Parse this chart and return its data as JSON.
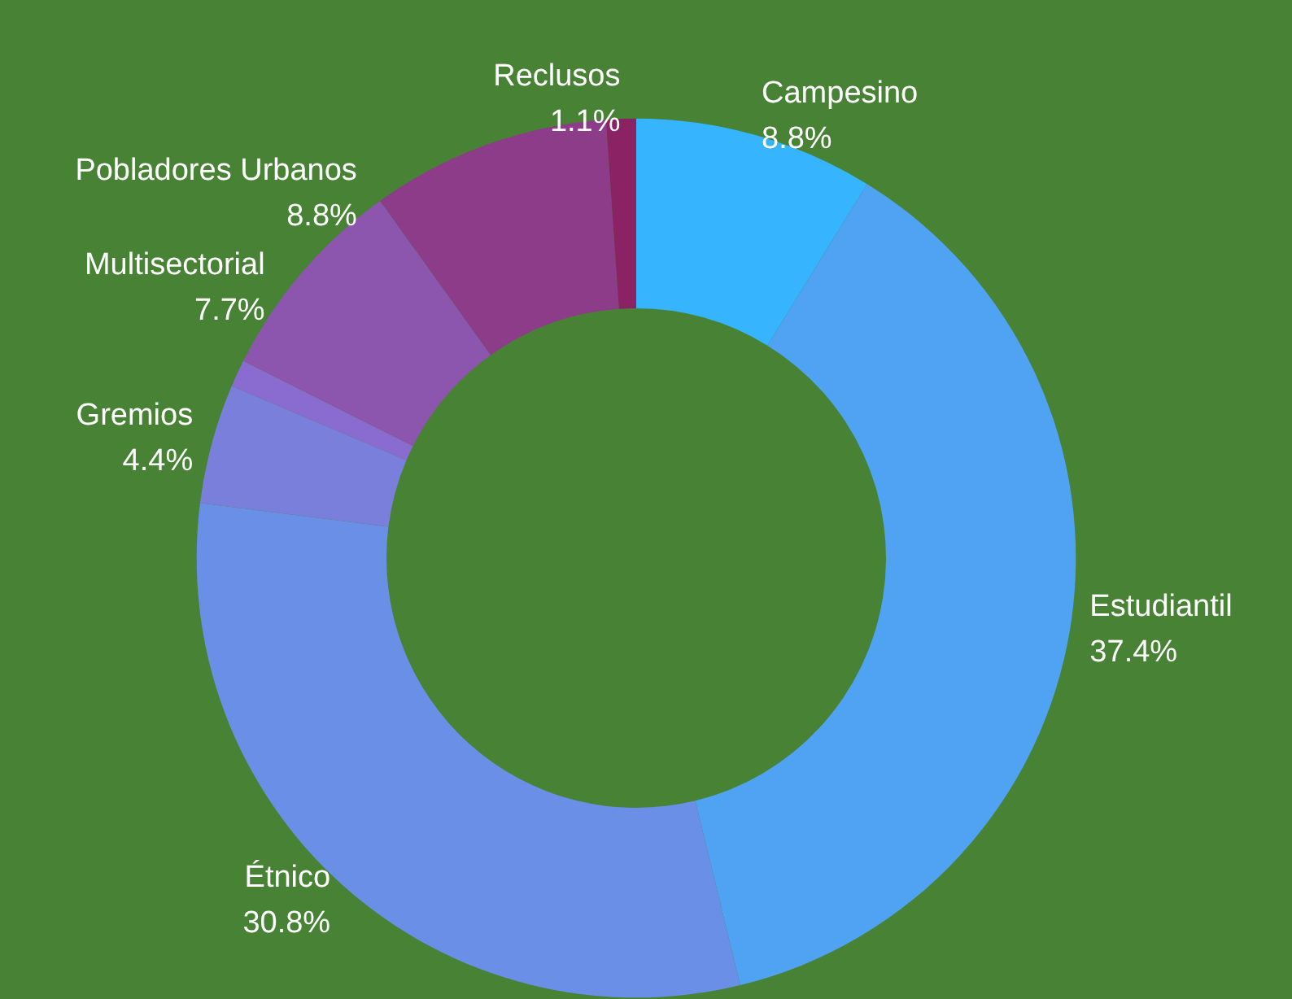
{
  "chart_data": {
    "type": "donut",
    "categories": [
      "Campesino",
      "Estudiantil",
      "Étnico",
      "Gremios",
      null,
      "Multisectorial",
      "Pobladores Urbanos",
      "Reclusos"
    ],
    "values": [
      8.8,
      37.4,
      30.8,
      4.4,
      1.0,
      7.7,
      8.8,
      1.1
    ],
    "value_labels": [
      "8.8%",
      "37.4%",
      "30.8%",
      "4.4%",
      null,
      "7.7%",
      "8.8%",
      "1.1%"
    ],
    "colors": [
      "#36b4fe",
      "#4fa3f2",
      "#6a8fe6",
      "#7a7fdc",
      "#8a6cd0",
      "#8c55ae",
      "#8d3c8a",
      "#8a2263"
    ],
    "legend": false
  }
}
